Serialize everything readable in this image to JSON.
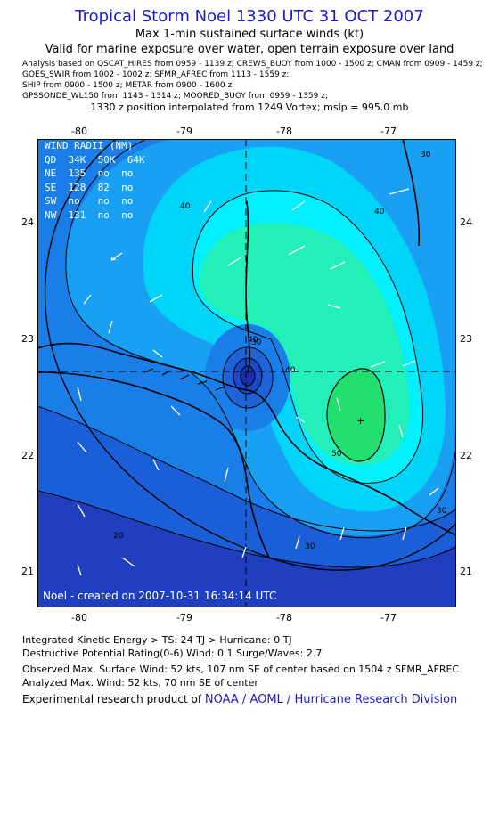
{
  "header": {
    "title": "Tropical Storm Noel 1330 UTC 31 OCT 2007",
    "subtitle1": "Max 1-min sustained surface winds (kt)",
    "subtitle2": "Valid for marine exposure over water, open terrain exposure over land",
    "analysis_lines": [
      "Analysis based on  QSCAT_HIRES from 0959 - 1139 z;  CREWS_BUOY from 1000 - 1500 z;  CMAN from 0909 - 1459 z;",
      "GOES_SWIR from 1002 - 1002 z;  SFMR_AFREC from 1113 - 1559 z;",
      "SHIP from 0900 - 1500 z;  METAR from 0900 - 1600 z;",
      "GPSSONDE_WL150 from 1143 - 1314 z;  MOORED_BUOY from 0959 - 1359 z;"
    ],
    "position_note": "1330 z position interpolated from 1249 Vortex; mslp = 995.0 mb"
  },
  "map": {
    "lon_labels": [
      "-80",
      "-79",
      "-78",
      "-77"
    ],
    "lat_labels": [
      "24",
      "23",
      "22",
      "21"
    ],
    "contour_labels": [
      "30",
      "40",
      "40",
      "40",
      "40",
      "50",
      "30",
      "30",
      "20",
      "30"
    ],
    "colors": {
      "ocean_low": "#1f3fbf",
      "mid": "#1a8ef0",
      "high": "#00e5ff",
      "peak": "#22f0a0",
      "core": "#22e070"
    },
    "wind_radii": {
      "header": "WIND RADII (NM)",
      "columns": "QD  34K  50K  64K",
      "rows": [
        [
          "NE",
          "135",
          "no",
          "no"
        ],
        [
          "SE",
          "128",
          "82",
          "no"
        ],
        [
          "SW",
          "no",
          "no",
          "no"
        ],
        [
          "NW",
          "131",
          "no",
          "no"
        ]
      ]
    },
    "stamp": "Noel - created on 2007-10-31 16:34:14 UTC"
  },
  "footer": {
    "ike": "Integrated Kinetic Energy > TS: 24 TJ   > Hurricane: 0 TJ",
    "dpr": "Destructive Potential Rating(0-6)   Wind: 0.1 Surge/Waves: 2.7",
    "observed": "Observed Max. Surface Wind: 52 kts, 107 nm SE of center based on 1504 z SFMR_AFREC",
    "analyzed": "Analyzed Max. Wind: 52 kts, 70 nm SE of center",
    "credit_prefix": "Experimental research product of ",
    "credit_org": "NOAA / AOML / Hurricane Research Division"
  }
}
